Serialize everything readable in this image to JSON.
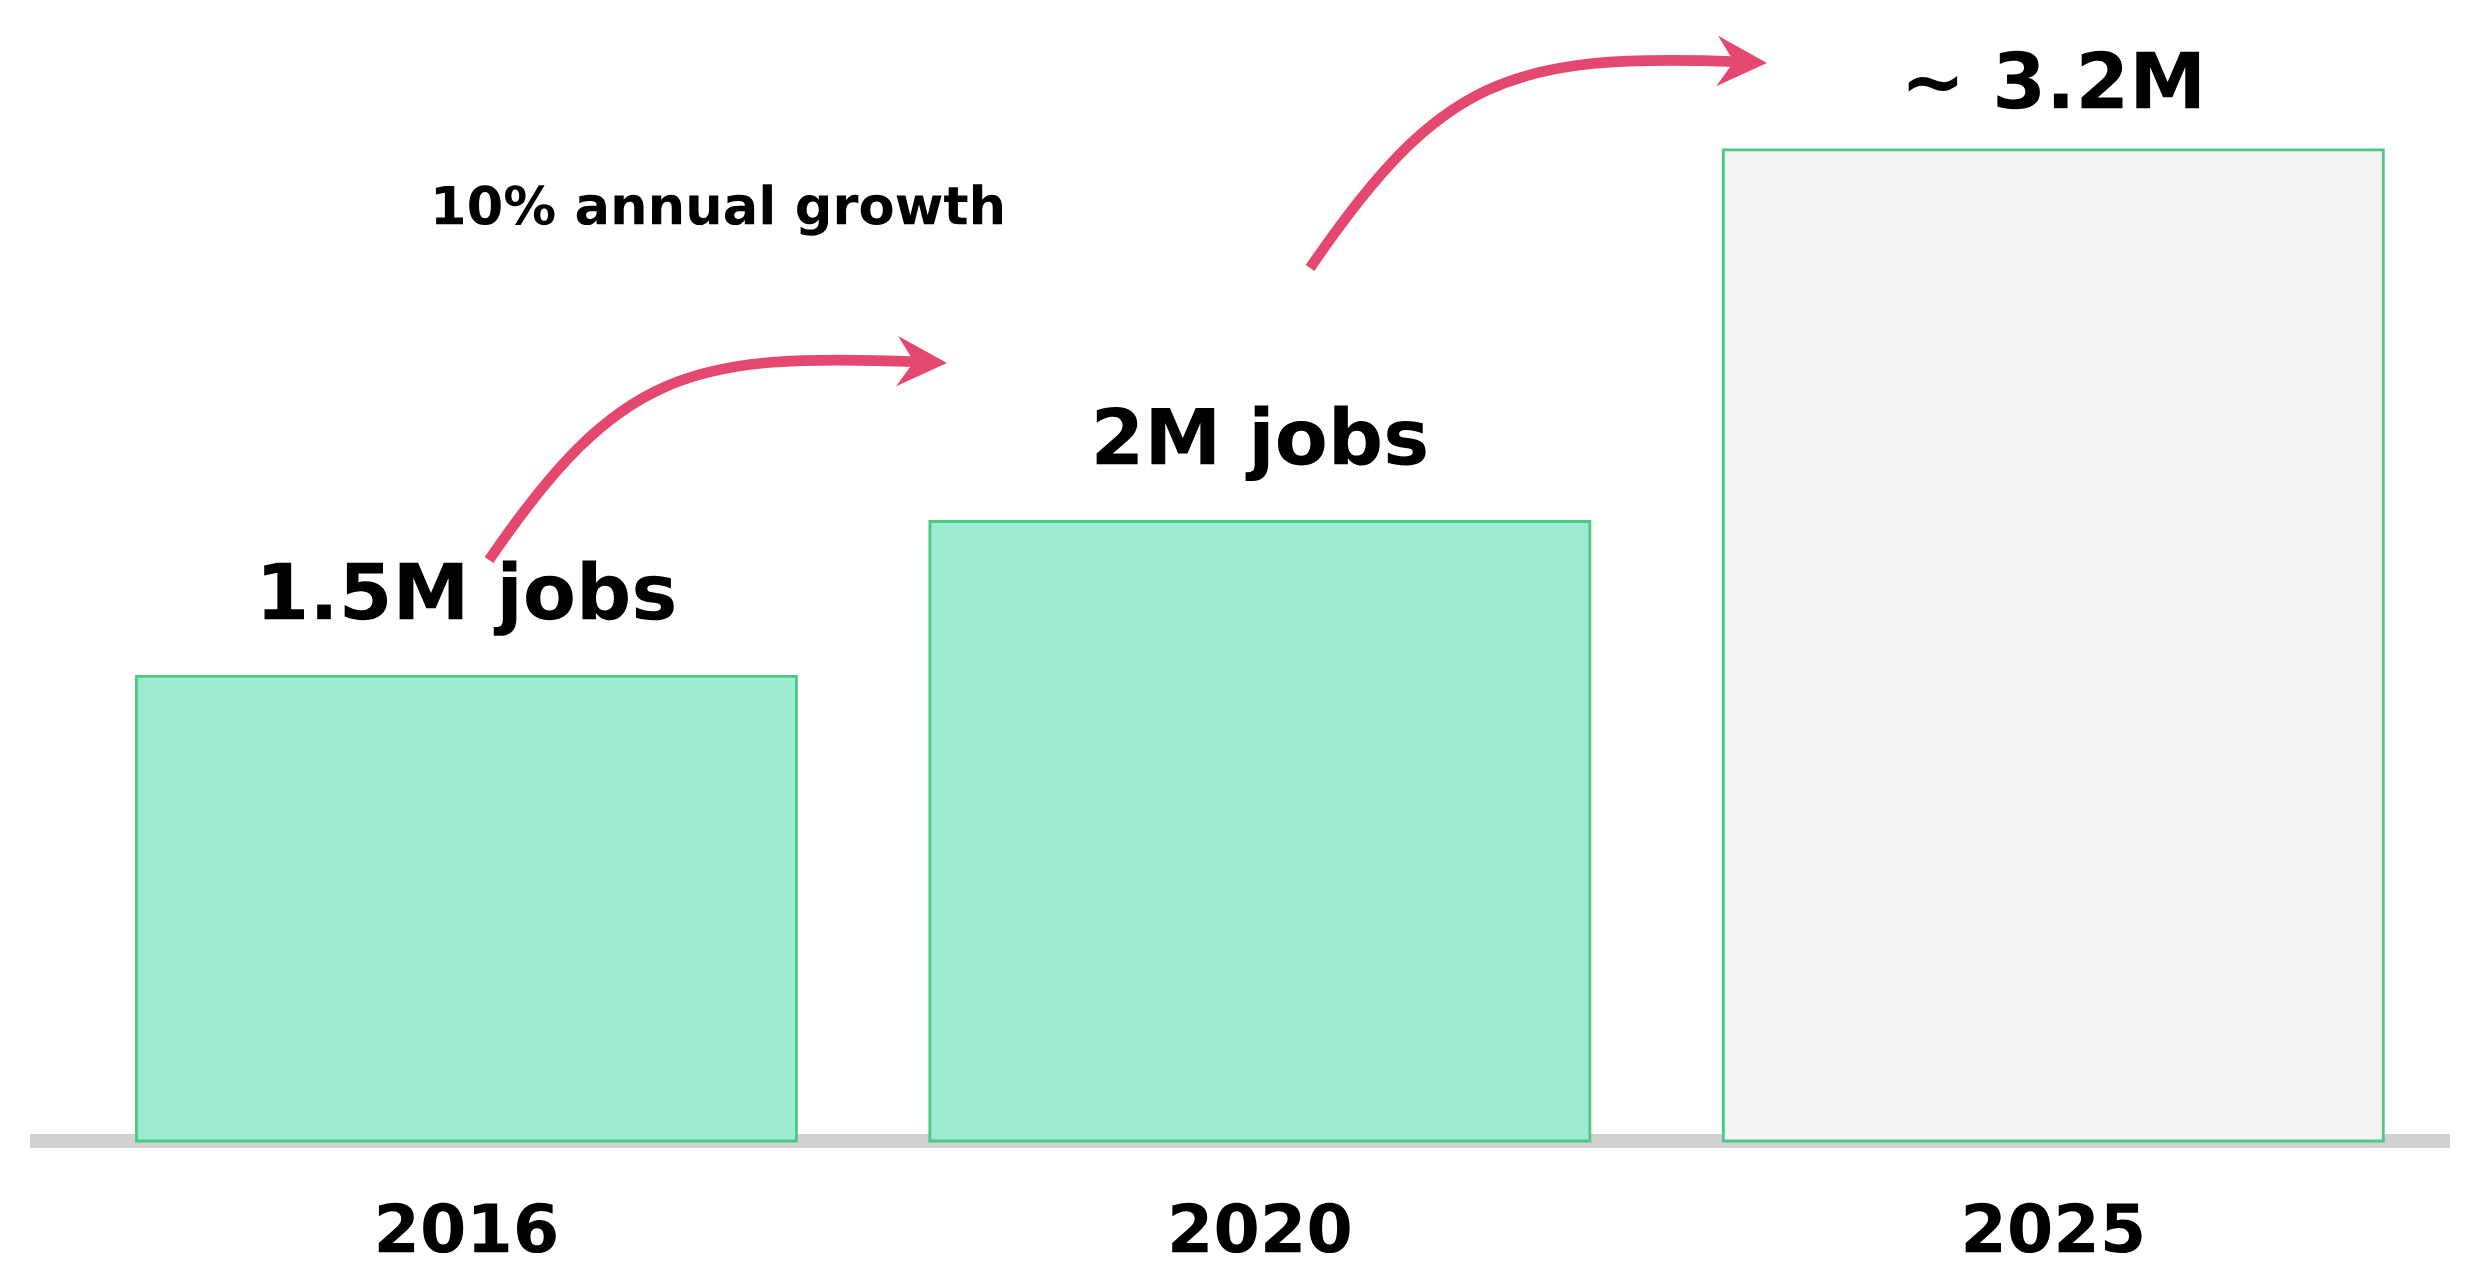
{
  "chart_data": {
    "type": "bar",
    "categories": [
      "2016",
      "2020",
      "2025"
    ],
    "values": [
      1.5,
      2,
      3.2
    ],
    "value_labels": [
      "1.5M jobs",
      "2M jobs",
      "~ 3.2M"
    ],
    "colors": [
      "#9eebd3",
      "#9eebd3",
      "#f4f4f4"
    ],
    "annotations": [
      "10% annual growth"
    ]
  }
}
